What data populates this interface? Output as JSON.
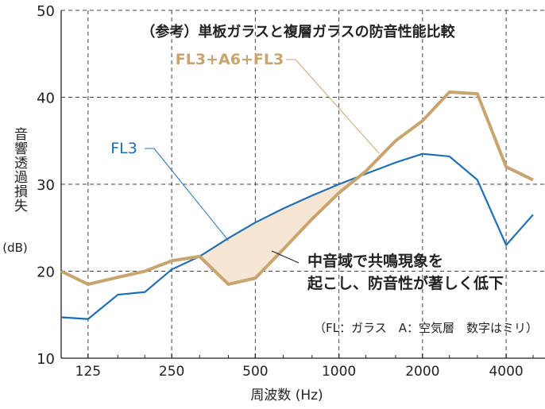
{
  "chart_data": {
    "type": "line",
    "title": "（参考）単板ガラスと複層ガラスの防音性能比較",
    "xlabel": "周波数 (Hz)",
    "ylabel": "音響透過損失",
    "ylabel_unit": "(dB)",
    "ylim": [
      10,
      50
    ],
    "yticks": [
      "10",
      "20",
      "30",
      "40",
      "50"
    ],
    "xscale": "log",
    "xticks": [
      "125",
      "250",
      "500",
      "1000",
      "2000",
      "4000"
    ],
    "grid": true,
    "x": [
      100,
      125,
      160,
      200,
      250,
      315,
      400,
      500,
      630,
      800,
      1000,
      1250,
      1600,
      2000,
      2500,
      3150,
      4000,
      5000
    ],
    "series": [
      {
        "name": "FL3",
        "color": "#1f6fb5",
        "values": [
          14.7,
          14.5,
          17.3,
          17.6,
          20.2,
          21.7,
          23.8,
          25.6,
          27.2,
          28.7,
          30.0,
          31.2,
          32.5,
          33.5,
          33.2,
          30.5,
          23.0,
          26.5
        ]
      },
      {
        "name": "FL3+A6+FL3",
        "color": "#c8a46e",
        "values": [
          20.0,
          18.5,
          19.3,
          20.0,
          21.2,
          21.7,
          18.5,
          19.2,
          22.5,
          26.0,
          29.0,
          31.5,
          35.0,
          37.3,
          40.6,
          40.4,
          32.0,
          30.5
        ]
      }
    ],
    "annotation": "中音域で共鳴現象を\n起こし、防音性が著しく低下",
    "note": "（FL：ガラス　A：空気層　数字はミリ）"
  }
}
